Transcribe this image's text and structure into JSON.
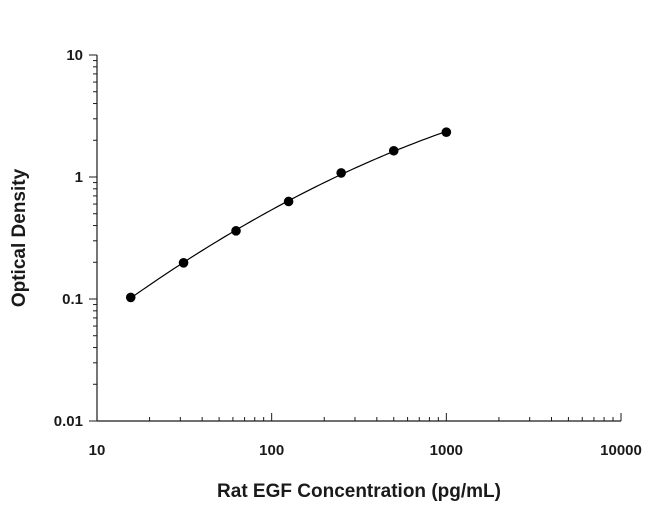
{
  "chart_data": {
    "type": "scatter",
    "title": "",
    "xlabel": "Rat EGF Concentration (pg/mL)",
    "ylabel": "Optical Density",
    "xscale": "log",
    "yscale": "log",
    "xlim": [
      10,
      10000
    ],
    "ylim": [
      0.01,
      10
    ],
    "grid": false,
    "legend": "none",
    "fit_curve": true,
    "marker_color": "#000000",
    "x_ticks": [
      {
        "value": 10,
        "label": "10"
      },
      {
        "value": 100,
        "label": "100"
      },
      {
        "value": 1000,
        "label": "1000"
      },
      {
        "value": 10000,
        "label": "10000"
      }
    ],
    "y_ticks": [
      {
        "value": 0.01,
        "label": "0.01"
      },
      {
        "value": 0.1,
        "label": "0.1"
      },
      {
        "value": 1,
        "label": "1"
      },
      {
        "value": 10,
        "label": "10"
      }
    ],
    "series": [
      {
        "x": [
          15.6,
          31.3,
          62.5,
          125,
          250,
          500,
          1000
        ],
        "y": [
          0.103,
          0.198,
          0.362,
          0.63,
          1.08,
          1.64,
          2.33
        ]
      }
    ]
  }
}
